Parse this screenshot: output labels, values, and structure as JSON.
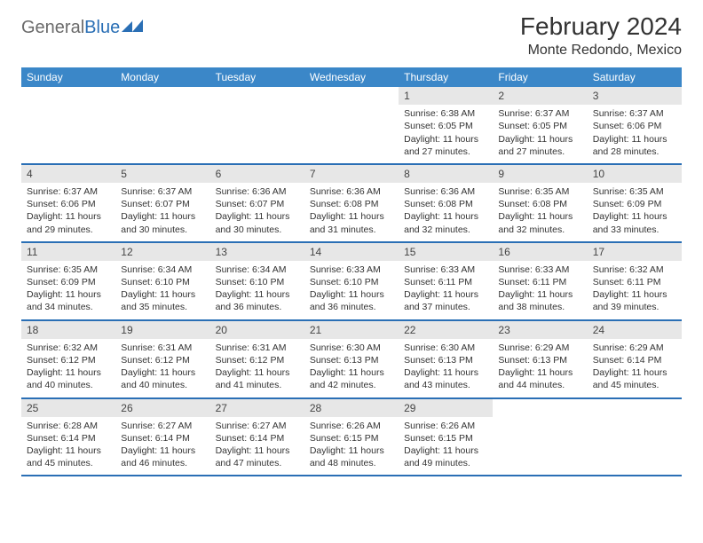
{
  "logo": {
    "part1": "General",
    "part2": "Blue"
  },
  "title": "February 2024",
  "location": "Monte Redondo, Mexico",
  "colors": {
    "header_bg": "#3b87c8",
    "week_divider": "#2a6fb5",
    "daynum_bg": "#e7e7e7",
    "text": "#333333",
    "logo_gray": "#6b6b6b",
    "logo_blue": "#2a6fb5",
    "background": "#ffffff"
  },
  "typography": {
    "title_fontsize": 28,
    "location_fontsize": 16,
    "dow_fontsize": 12,
    "cell_fontsize": 10.5
  },
  "dow": [
    "Sunday",
    "Monday",
    "Tuesday",
    "Wednesday",
    "Thursday",
    "Friday",
    "Saturday"
  ],
  "weeks": [
    [
      null,
      null,
      null,
      null,
      {
        "n": "1",
        "sr": "Sunrise: 6:38 AM",
        "ss": "Sunset: 6:05 PM",
        "dl": "Daylight: 11 hours and 27 minutes."
      },
      {
        "n": "2",
        "sr": "Sunrise: 6:37 AM",
        "ss": "Sunset: 6:05 PM",
        "dl": "Daylight: 11 hours and 27 minutes."
      },
      {
        "n": "3",
        "sr": "Sunrise: 6:37 AM",
        "ss": "Sunset: 6:06 PM",
        "dl": "Daylight: 11 hours and 28 minutes."
      }
    ],
    [
      {
        "n": "4",
        "sr": "Sunrise: 6:37 AM",
        "ss": "Sunset: 6:06 PM",
        "dl": "Daylight: 11 hours and 29 minutes."
      },
      {
        "n": "5",
        "sr": "Sunrise: 6:37 AM",
        "ss": "Sunset: 6:07 PM",
        "dl": "Daylight: 11 hours and 30 minutes."
      },
      {
        "n": "6",
        "sr": "Sunrise: 6:36 AM",
        "ss": "Sunset: 6:07 PM",
        "dl": "Daylight: 11 hours and 30 minutes."
      },
      {
        "n": "7",
        "sr": "Sunrise: 6:36 AM",
        "ss": "Sunset: 6:08 PM",
        "dl": "Daylight: 11 hours and 31 minutes."
      },
      {
        "n": "8",
        "sr": "Sunrise: 6:36 AM",
        "ss": "Sunset: 6:08 PM",
        "dl": "Daylight: 11 hours and 32 minutes."
      },
      {
        "n": "9",
        "sr": "Sunrise: 6:35 AM",
        "ss": "Sunset: 6:08 PM",
        "dl": "Daylight: 11 hours and 32 minutes."
      },
      {
        "n": "10",
        "sr": "Sunrise: 6:35 AM",
        "ss": "Sunset: 6:09 PM",
        "dl": "Daylight: 11 hours and 33 minutes."
      }
    ],
    [
      {
        "n": "11",
        "sr": "Sunrise: 6:35 AM",
        "ss": "Sunset: 6:09 PM",
        "dl": "Daylight: 11 hours and 34 minutes."
      },
      {
        "n": "12",
        "sr": "Sunrise: 6:34 AM",
        "ss": "Sunset: 6:10 PM",
        "dl": "Daylight: 11 hours and 35 minutes."
      },
      {
        "n": "13",
        "sr": "Sunrise: 6:34 AM",
        "ss": "Sunset: 6:10 PM",
        "dl": "Daylight: 11 hours and 36 minutes."
      },
      {
        "n": "14",
        "sr": "Sunrise: 6:33 AM",
        "ss": "Sunset: 6:10 PM",
        "dl": "Daylight: 11 hours and 36 minutes."
      },
      {
        "n": "15",
        "sr": "Sunrise: 6:33 AM",
        "ss": "Sunset: 6:11 PM",
        "dl": "Daylight: 11 hours and 37 minutes."
      },
      {
        "n": "16",
        "sr": "Sunrise: 6:33 AM",
        "ss": "Sunset: 6:11 PM",
        "dl": "Daylight: 11 hours and 38 minutes."
      },
      {
        "n": "17",
        "sr": "Sunrise: 6:32 AM",
        "ss": "Sunset: 6:11 PM",
        "dl": "Daylight: 11 hours and 39 minutes."
      }
    ],
    [
      {
        "n": "18",
        "sr": "Sunrise: 6:32 AM",
        "ss": "Sunset: 6:12 PM",
        "dl": "Daylight: 11 hours and 40 minutes."
      },
      {
        "n": "19",
        "sr": "Sunrise: 6:31 AM",
        "ss": "Sunset: 6:12 PM",
        "dl": "Daylight: 11 hours and 40 minutes."
      },
      {
        "n": "20",
        "sr": "Sunrise: 6:31 AM",
        "ss": "Sunset: 6:12 PM",
        "dl": "Daylight: 11 hours and 41 minutes."
      },
      {
        "n": "21",
        "sr": "Sunrise: 6:30 AM",
        "ss": "Sunset: 6:13 PM",
        "dl": "Daylight: 11 hours and 42 minutes."
      },
      {
        "n": "22",
        "sr": "Sunrise: 6:30 AM",
        "ss": "Sunset: 6:13 PM",
        "dl": "Daylight: 11 hours and 43 minutes."
      },
      {
        "n": "23",
        "sr": "Sunrise: 6:29 AM",
        "ss": "Sunset: 6:13 PM",
        "dl": "Daylight: 11 hours and 44 minutes."
      },
      {
        "n": "24",
        "sr": "Sunrise: 6:29 AM",
        "ss": "Sunset: 6:14 PM",
        "dl": "Daylight: 11 hours and 45 minutes."
      }
    ],
    [
      {
        "n": "25",
        "sr": "Sunrise: 6:28 AM",
        "ss": "Sunset: 6:14 PM",
        "dl": "Daylight: 11 hours and 45 minutes."
      },
      {
        "n": "26",
        "sr": "Sunrise: 6:27 AM",
        "ss": "Sunset: 6:14 PM",
        "dl": "Daylight: 11 hours and 46 minutes."
      },
      {
        "n": "27",
        "sr": "Sunrise: 6:27 AM",
        "ss": "Sunset: 6:14 PM",
        "dl": "Daylight: 11 hours and 47 minutes."
      },
      {
        "n": "28",
        "sr": "Sunrise: 6:26 AM",
        "ss": "Sunset: 6:15 PM",
        "dl": "Daylight: 11 hours and 48 minutes."
      },
      {
        "n": "29",
        "sr": "Sunrise: 6:26 AM",
        "ss": "Sunset: 6:15 PM",
        "dl": "Daylight: 11 hours and 49 minutes."
      },
      null,
      null
    ]
  ]
}
